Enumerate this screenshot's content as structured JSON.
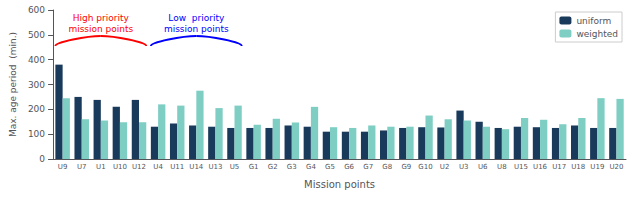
{
  "chart_data": {
    "type": "bar",
    "categories": [
      "U9",
      "U7",
      "U1",
      "U10",
      "U12",
      "U4",
      "U11",
      "U14",
      "U13",
      "U5",
      "G1",
      "G2",
      "G3",
      "G4",
      "G5",
      "G6",
      "G7",
      "G8",
      "G9",
      "G10",
      "U2",
      "U3",
      "U6",
      "U8",
      "U15",
      "U16",
      "U17",
      "U18",
      "U19",
      "U20"
    ],
    "series": [
      {
        "name": "uniform",
        "color": "#1a3a5c",
        "values": [
          380,
          250,
          238,
          210,
          238,
          130,
          143,
          135,
          130,
          125,
          125,
          125,
          135,
          130,
          110,
          110,
          110,
          115,
          125,
          128,
          127,
          195,
          150,
          125,
          130,
          128,
          125,
          135,
          125,
          125
        ]
      },
      {
        "name": "weighted",
        "color": "#7ecec4",
        "values": [
          245,
          160,
          155,
          148,
          148,
          220,
          215,
          275,
          205,
          215,
          138,
          162,
          147,
          210,
          128,
          125,
          135,
          130,
          130,
          175,
          160,
          155,
          130,
          120,
          165,
          158,
          140,
          165,
          245,
          242
        ]
      }
    ],
    "xlabel": "Mission points",
    "ylabel": "Max. age period  (min.)",
    "ylim": [
      0,
      600
    ],
    "yticks": [
      0,
      100,
      200,
      300,
      400,
      500,
      600
    ],
    "grid": false,
    "legend": "upper right",
    "annotations": [
      {
        "text": "High priority\nmission points",
        "color": "red",
        "categories": [
          "U9",
          "U7",
          "U1",
          "U10",
          "U12"
        ]
      },
      {
        "text": "Low  priority\nmission points",
        "color": "blue",
        "categories": [
          "U4",
          "U11",
          "U14",
          "U13",
          "U5"
        ]
      }
    ]
  }
}
